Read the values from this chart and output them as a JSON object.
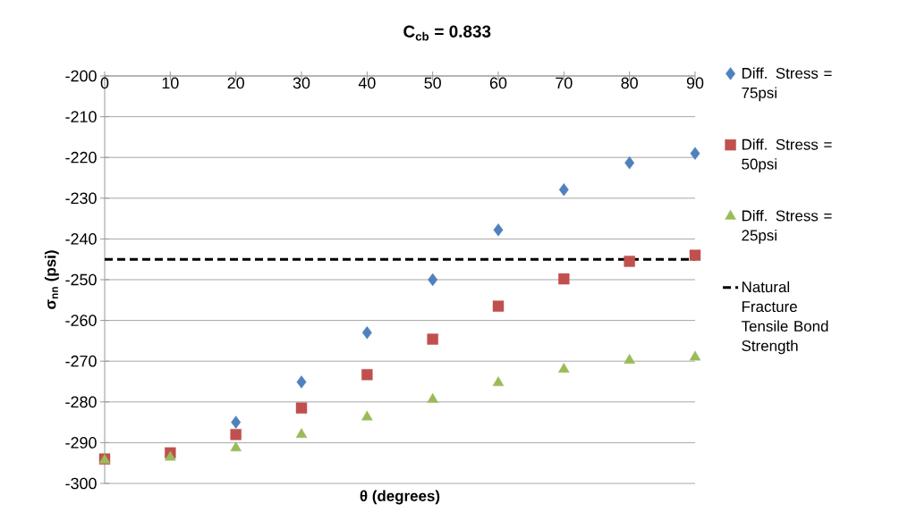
{
  "chart_data": {
    "type": "scatter",
    "title": "C$_{cb}$ = 0.833",
    "xlabel": "θ (degrees)",
    "ylabel": "σ$_{nn}$ (psi)",
    "x": [
      0,
      10,
      20,
      30,
      40,
      50,
      60,
      70,
      80,
      90
    ],
    "series": [
      {
        "name": "Diff. Stress = 75psi",
        "color": "#4f81bd",
        "marker": "diamond",
        "values": [
          null,
          null,
          -285,
          -275.1,
          -263,
          -250,
          -237.8,
          -227.9,
          -221.3,
          -219
        ]
      },
      {
        "name": "Diff. Stress = 50psi",
        "color": "#c0504d",
        "marker": "square",
        "values": [
          -294,
          -292.5,
          -288,
          -281.5,
          -273.3,
          -264.6,
          -256.5,
          -249.8,
          -245.5,
          -244
        ]
      },
      {
        "name": "Diff. Stress = 25psi",
        "color": "#9bbb59",
        "marker": "triangle",
        "values": [
          -294.3,
          -293.6,
          -291.3,
          -288,
          -283.7,
          -279.4,
          -275.3,
          -272,
          -269.8,
          -269
        ]
      }
    ],
    "ref_lines": [
      {
        "axis": "y",
        "value": -245,
        "label": "Natural Fracture Tensile Bond Strength",
        "color": "#000000",
        "line_style": "dashed"
      }
    ],
    "xlim": [
      0,
      90
    ],
    "xticks": [
      0,
      10,
      20,
      30,
      40,
      50,
      60,
      70,
      80,
      90
    ],
    "ylim": [
      -300,
      -200
    ],
    "yticks": [
      -200,
      -210,
      -220,
      -230,
      -240,
      -250,
      -260,
      -270,
      -280,
      -290,
      -300
    ],
    "grid": "y",
    "legend": "right"
  }
}
